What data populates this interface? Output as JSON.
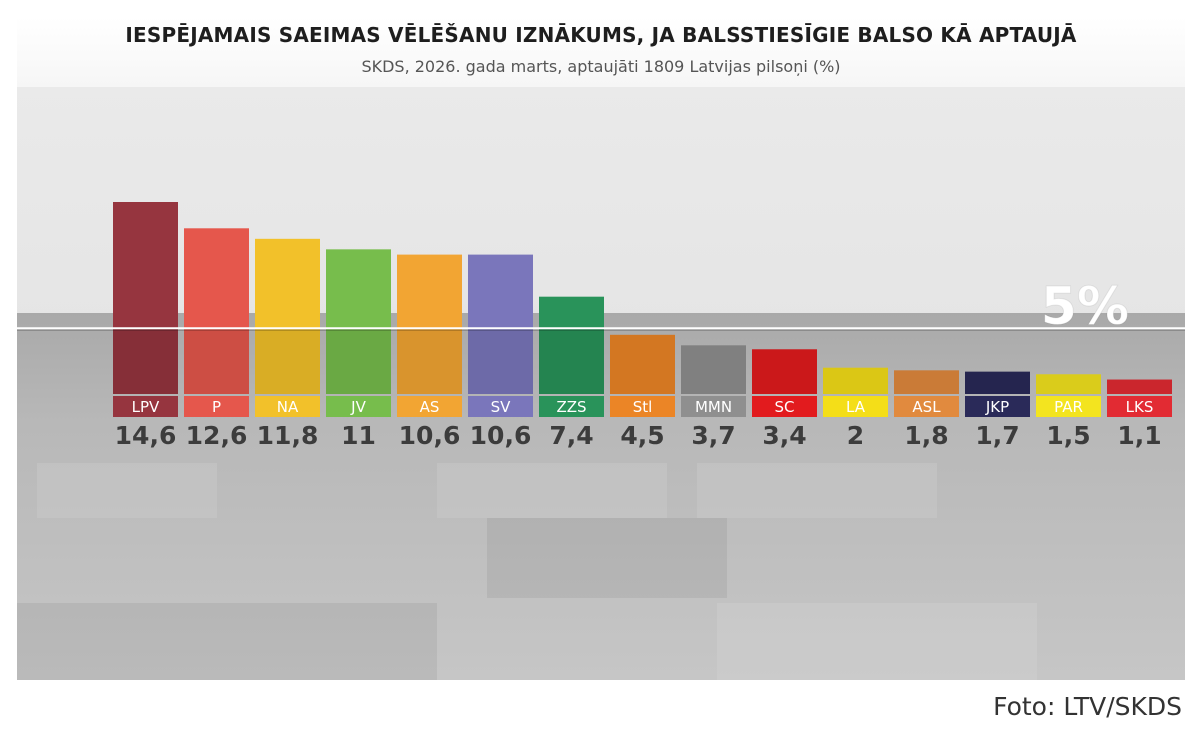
{
  "chart_data": {
    "type": "bar",
    "title": "IESPĒJAMAIS SAEIMAS VĒLĒŠANU IZNĀKUMS, JA BALSSTIESĪGIE BALSO KĀ APTAUJĀ",
    "subtitle": "SKDS, 2026. gada marts, aptaujāti 1809 Latvijas pilsoņi (%)",
    "categories": [
      "LPV",
      "P",
      "NA",
      "JV",
      "AS",
      "SV",
      "ZZS",
      "Stl",
      "MMN",
      "SC",
      "LA",
      "ASL",
      "JKP",
      "PAR",
      "LKS"
    ],
    "values": [
      14.6,
      12.6,
      11.8,
      11,
      10.6,
      10.6,
      7.4,
      4.5,
      3.7,
      3.4,
      2,
      1.8,
      1.7,
      1.5,
      1.1
    ],
    "value_labels": [
      "14,6",
      "12,6",
      "11,8",
      "11",
      "10,6",
      "10,6",
      "7,4",
      "4,5",
      "3,7",
      "3,4",
      "2",
      "1,8",
      "1,7",
      "1,5",
      "1,1"
    ],
    "colors": [
      "#96353f",
      "#e5574c",
      "#f2c12a",
      "#77bd4c",
      "#f2a533",
      "#7a76bb",
      "#29935a",
      "#eb8526",
      "#8f8f8f",
      "#e21b1e",
      "#f4de18",
      "#e18a3e",
      "#2a2a59",
      "#f3e41f",
      "#e22b33"
    ],
    "label_text_colors": [
      "#ffffff",
      "#ffffff",
      "#ffffff",
      "#ffffff",
      "#ffffff",
      "#ffffff",
      "#ffffff",
      "#ffffff",
      "#ffffff",
      "#ffffff",
      "#ffffff",
      "#ffffff",
      "#ffffff",
      "#ffffff",
      "#ffffff"
    ],
    "threshold": {
      "value": 5,
      "label": "5%"
    },
    "ylim": [
      0,
      15
    ],
    "xlabel": "",
    "ylabel": ""
  },
  "credit": "Foto: LTV/SKDS"
}
